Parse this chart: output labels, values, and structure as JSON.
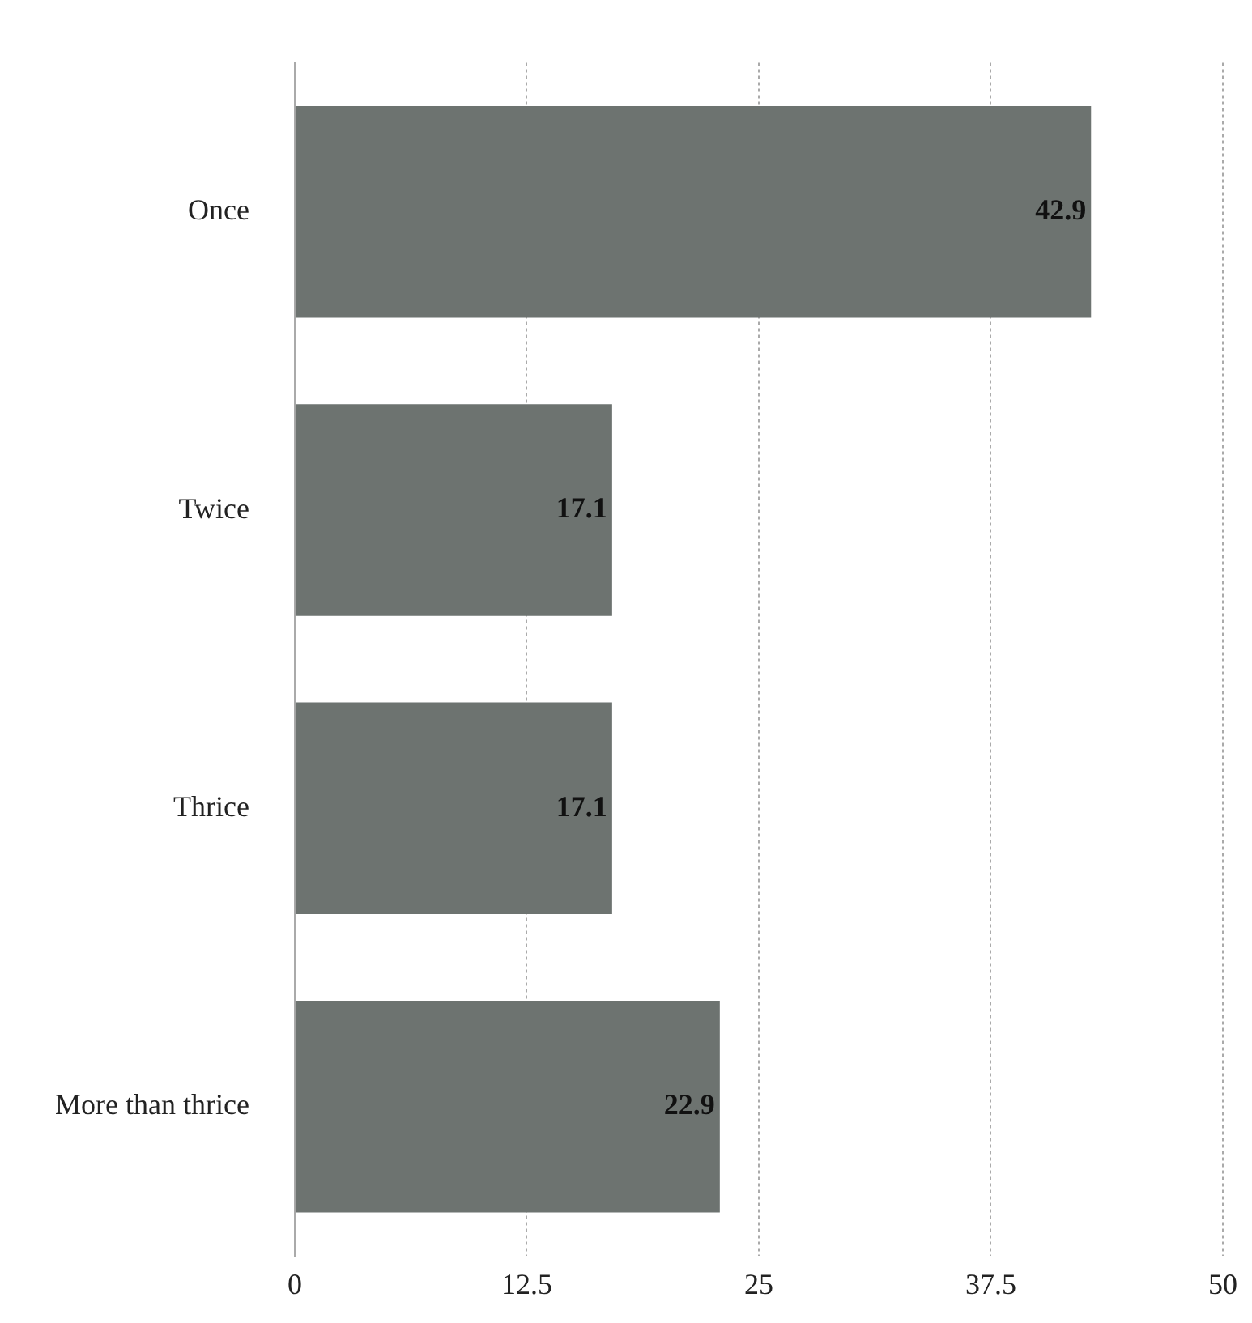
{
  "chart_data": {
    "type": "bar",
    "orientation": "horizontal",
    "categories": [
      "Once",
      "Twice",
      "Thrice",
      "More than thrice"
    ],
    "values": [
      42.9,
      17.1,
      17.1,
      22.9
    ],
    "color": "#6d7370",
    "xlim": [
      0,
      50
    ],
    "xticks": [
      0,
      12.5,
      25,
      37.5,
      50
    ],
    "grid": "x",
    "line_style": "dotted",
    "data_labels": true,
    "legend": false
  }
}
